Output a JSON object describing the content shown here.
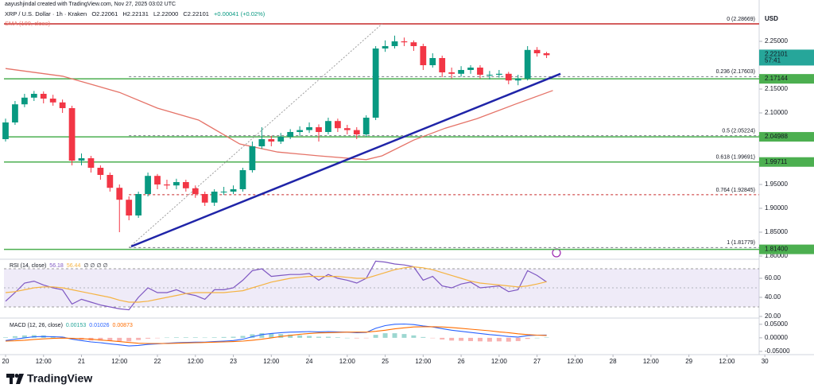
{
  "header": {
    "credit": "aayushjindal created with TradingView.com, Nov 27, 2025 03:02 UTC",
    "symbol": "XRP / U.S. Dollar · 1h · Kraken",
    "ohlc": [
      "O2.22061",
      "H2.22131",
      "L2.22000",
      "C2.22101",
      "+0.00041 (+0.02%)"
    ]
  },
  "chart_data": [
    {
      "type": "candlestick",
      "currency": "USD",
      "xlim": [
        -0.5,
        238.2
      ],
      "ylim": [
        1.795,
        2.31
      ],
      "grid": false,
      "yticks": [
        {
          "value": 2.25,
          "label": "2.25000"
        },
        {
          "value": 2.15,
          "label": "2.15000"
        },
        {
          "value": 2.1,
          "label": "2.10000"
        },
        {
          "value": 1.95,
          "label": "1.95000"
        },
        {
          "value": 1.9,
          "label": "1.90000"
        },
        {
          "value": 1.85,
          "label": "1.85000"
        },
        {
          "value": 1.8,
          "label": "1.80000"
        }
      ],
      "x": [
        0,
        3,
        6,
        9,
        12,
        15,
        18,
        21,
        24,
        27,
        30,
        33,
        36,
        39,
        42,
        45,
        48,
        51,
        54,
        57,
        60,
        63,
        66,
        69,
        72,
        75,
        78,
        81,
        84,
        87,
        90,
        93,
        96,
        99,
        102,
        105,
        108,
        111,
        114,
        117,
        120,
        123,
        126,
        129,
        132,
        135,
        138,
        141,
        144,
        147,
        150,
        153,
        156,
        159,
        162,
        165,
        168,
        171
      ],
      "open": [
        2.045,
        2.08,
        2.118,
        2.132,
        2.14,
        2.13,
        2.122,
        2.11,
        2.0,
        2.005,
        1.985,
        1.97,
        1.943,
        1.918,
        1.885,
        1.93,
        1.968,
        1.95,
        1.948,
        1.955,
        1.942,
        1.93,
        1.912,
        1.935,
        1.935,
        1.94,
        1.98,
        2.03,
        2.045,
        2.04,
        2.05,
        2.06,
        2.064,
        2.07,
        2.06,
        2.083,
        2.068,
        2.064,
        2.055,
        2.09,
        2.235,
        2.24,
        2.25,
        2.248,
        2.24,
        2.2,
        2.215,
        2.185,
        2.182,
        2.19,
        2.195,
        2.18,
        2.18,
        2.182,
        2.168,
        2.172,
        2.232,
        2.225
      ],
      "high": [
        2.088,
        2.125,
        2.14,
        2.146,
        2.145,
        2.138,
        2.128,
        2.115,
        2.015,
        2.01,
        1.99,
        1.975,
        1.95,
        1.925,
        1.935,
        1.975,
        1.972,
        1.96,
        1.962,
        1.96,
        1.948,
        1.935,
        1.94,
        1.945,
        1.948,
        1.985,
        2.04,
        2.07,
        2.052,
        2.058,
        2.066,
        2.072,
        2.08,
        2.076,
        2.09,
        2.088,
        2.075,
        2.07,
        2.095,
        2.24,
        2.252,
        2.262,
        2.258,
        2.252,
        2.245,
        2.225,
        2.22,
        2.195,
        2.198,
        2.2,
        2.2,
        2.188,
        2.19,
        2.186,
        2.18,
        2.24,
        2.238,
        2.228
      ],
      "low": [
        2.04,
        2.075,
        2.112,
        2.125,
        2.12,
        2.115,
        2.1,
        1.99,
        1.99,
        1.975,
        1.96,
        1.935,
        1.85,
        1.875,
        1.88,
        1.925,
        1.94,
        1.94,
        1.94,
        1.935,
        1.922,
        1.905,
        1.905,
        1.928,
        1.93,
        1.935,
        1.975,
        2.025,
        2.03,
        2.035,
        2.045,
        2.052,
        2.058,
        2.04,
        2.055,
        2.06,
        2.055,
        2.045,
        2.05,
        2.085,
        2.228,
        2.235,
        2.24,
        2.23,
        2.19,
        2.195,
        2.175,
        2.172,
        2.176,
        2.182,
        2.172,
        2.17,
        2.174,
        2.16,
        2.158,
        2.168,
        2.218,
        2.215
      ],
      "close": [
        2.08,
        2.118,
        2.132,
        2.14,
        2.13,
        2.122,
        2.11,
        2.0,
        2.005,
        1.985,
        1.97,
        1.943,
        1.918,
        1.885,
        1.93,
        1.968,
        1.95,
        1.948,
        1.955,
        1.942,
        1.93,
        1.912,
        1.935,
        1.935,
        1.94,
        1.98,
        2.03,
        2.045,
        2.04,
        2.05,
        2.06,
        2.064,
        2.07,
        2.06,
        2.083,
        2.068,
        2.064,
        2.055,
        2.09,
        2.235,
        2.24,
        2.25,
        2.248,
        2.24,
        2.2,
        2.215,
        2.185,
        2.182,
        2.19,
        2.195,
        2.18,
        2.18,
        2.182,
        2.168,
        2.172,
        2.232,
        2.225,
        2.22101
      ],
      "up_color": "#089981",
      "down_color": "#f23645",
      "sma": {
        "name": "SMA (100, close)",
        "color": "#e57368",
        "x": [
          0,
          18,
          36,
          48,
          61,
          74,
          86,
          99,
          114,
          119,
          129,
          139,
          149,
          161,
          173
        ],
        "values": [
          2.193,
          2.177,
          2.143,
          2.11,
          2.085,
          2.035,
          2.018,
          2.01,
          2.002,
          2.01,
          2.043,
          2.068,
          2.088,
          2.118,
          2.147
        ]
      },
      "trendline": {
        "color": "#1f24a8",
        "x": [
          39.7,
          175.4
        ],
        "values": [
          1.82,
          2.182
        ]
      },
      "fib_line": {
        "color": "#9e9e9e",
        "x": [
          39,
          119
        ],
        "values": [
          1.81779,
          2.28669
        ]
      },
      "fib": [
        {
          "value": 2.28669,
          "label": "0 (2.28669)",
          "color": "#c62828",
          "style": "solid"
        },
        {
          "value": 2.17603,
          "label": "0.236 (2.17603)",
          "color": "#787b86",
          "style": "dashed"
        },
        {
          "value": 2.05224,
          "label": "0.5 (2.05224)",
          "color": "#787b86",
          "style": "dashed"
        },
        {
          "value": 1.99691,
          "label": "0.618 (1.99691)",
          "color": "#787b86",
          "style": "dashed"
        },
        {
          "value": 1.92845,
          "label": "0.764 (1.92845)",
          "color": "#c62828",
          "style": "dashed"
        },
        {
          "value": 1.81779,
          "label": "1 (1.81779)",
          "color": "#787b86",
          "style": "dashed"
        }
      ],
      "levels": {
        "color": "#4caf50",
        "values": [
          2.17144,
          2.04988,
          1.99711,
          {
            "value": 1.814,
            "label": "1.81400"
          }
        ]
      },
      "last": {
        "value": 2.22101,
        "countdown": "57:41",
        "color": "#26a69a"
      }
    },
    {
      "type": "line",
      "title": "RSI (14, close)",
      "placeholders": "∅ ∅ ∅ ∅",
      "xlim": [
        -0.5,
        238.2
      ],
      "ylim": [
        18.3,
        80
      ],
      "yticks": [
        {
          "value": 60,
          "label": "60.00"
        },
        {
          "value": 40,
          "label": "40.00"
        },
        {
          "value": 20,
          "label": "20.00"
        }
      ],
      "band": [
        30,
        70
      ],
      "band_color": "#7e57c2",
      "midline": 50,
      "series": [
        {
          "color": "#7e57c2",
          "values": [
            36,
            45,
            55,
            57,
            53,
            50,
            48,
            33,
            38,
            35,
            32,
            30,
            28,
            27,
            40,
            50,
            45,
            45,
            48,
            44,
            42,
            38,
            48,
            48,
            50,
            58,
            68,
            70,
            62,
            63,
            64,
            64,
            65,
            58,
            64,
            60,
            58,
            55,
            60,
            78,
            77,
            75,
            74,
            72,
            58,
            62,
            52,
            50,
            54,
            56,
            50,
            51,
            52,
            46,
            48,
            68,
            63,
            56.18
          ]
        },
        {
          "color": "#f5b342",
          "values": [
            45,
            46,
            48,
            50,
            51,
            51,
            50,
            48,
            46,
            44,
            42,
            40,
            37,
            35,
            35,
            36,
            38,
            40,
            42,
            44,
            45,
            45,
            45,
            45,
            46,
            47,
            50,
            53,
            56,
            58,
            60,
            61,
            62,
            62,
            62,
            62,
            61,
            60,
            60,
            63,
            66,
            69,
            71,
            72,
            71,
            69,
            66,
            63,
            60,
            57,
            55,
            54,
            53,
            52,
            51,
            52,
            54,
            56.44
          ]
        }
      ]
    },
    {
      "type": "macd",
      "title": "MACD (12, 26, close)",
      "xlim": [
        -0.5,
        238.2
      ],
      "ylim": [
        -0.062,
        0.073
      ],
      "yticks": [
        {
          "value": 0.05,
          "label": "0.05000"
        },
        {
          "value": 0,
          "label": "0.00000"
        },
        {
          "value": -0.05,
          "label": "-0.05000"
        }
      ],
      "histogram": {
        "up_color": "#26a69a",
        "down_color": "#ef5350",
        "values": [
          0.002,
          0.006,
          0.009,
          0.01,
          0.009,
          0.006,
          0.004,
          -0.003,
          -0.007,
          -0.01,
          -0.01,
          -0.011,
          -0.012,
          -0.013,
          -0.008,
          -0.003,
          -0.001,
          0.001,
          0.002,
          0.002,
          0.002,
          0.001,
          0.002,
          0.003,
          0.004,
          0.007,
          0.013,
          0.017,
          0.016,
          0.014,
          0.012,
          0.009,
          0.007,
          0.004,
          0.004,
          0.002,
          0.0,
          -0.002,
          -0.001,
          0.011,
          0.017,
          0.017,
          0.014,
          0.009,
          0.003,
          -0.001,
          -0.006,
          -0.01,
          -0.011,
          -0.012,
          -0.013,
          -0.014,
          -0.013,
          -0.014,
          -0.012,
          -0.004,
          0.0,
          0.00153
        ]
      },
      "series": [
        {
          "color": "#2962ff",
          "values": [
            -0.01,
            -0.005,
            0.0,
            0.004,
            0.005,
            0.004,
            0.003,
            -0.005,
            -0.01,
            -0.015,
            -0.018,
            -0.022,
            -0.026,
            -0.03,
            -0.028,
            -0.024,
            -0.022,
            -0.02,
            -0.018,
            -0.017,
            -0.016,
            -0.016,
            -0.014,
            -0.012,
            -0.01,
            -0.005,
            0.004,
            0.012,
            0.016,
            0.019,
            0.021,
            0.022,
            0.023,
            0.022,
            0.023,
            0.022,
            0.021,
            0.019,
            0.02,
            0.035,
            0.045,
            0.05,
            0.051,
            0.049,
            0.044,
            0.04,
            0.034,
            0.028,
            0.024,
            0.02,
            0.016,
            0.012,
            0.009,
            0.005,
            0.003,
            0.008,
            0.01,
            0.01026
          ]
        },
        {
          "color": "#ff6d00",
          "values": [
            -0.012,
            -0.011,
            -0.009,
            -0.006,
            -0.004,
            -0.002,
            -0.001,
            -0.002,
            -0.003,
            -0.005,
            -0.008,
            -0.011,
            -0.014,
            -0.017,
            -0.02,
            -0.021,
            -0.021,
            -0.021,
            -0.02,
            -0.019,
            -0.018,
            -0.017,
            -0.016,
            -0.015,
            -0.014,
            -0.012,
            -0.009,
            -0.005,
            0.0,
            0.005,
            0.009,
            0.013,
            0.016,
            0.018,
            0.019,
            0.02,
            0.021,
            0.021,
            0.021,
            0.024,
            0.028,
            0.033,
            0.037,
            0.04,
            0.041,
            0.041,
            0.04,
            0.038,
            0.035,
            0.032,
            0.029,
            0.026,
            0.022,
            0.019,
            0.015,
            0.012,
            0.01,
            0.00873
          ]
        }
      ],
      "xticks": [
        {
          "value": 0,
          "label": "20"
        },
        {
          "value": 12,
          "label": "12:00"
        },
        {
          "value": 24,
          "label": "21"
        },
        {
          "value": 36,
          "label": "12:00"
        },
        {
          "value": 48,
          "label": "22"
        },
        {
          "value": 60,
          "label": "12:00"
        },
        {
          "value": 72,
          "label": "23"
        },
        {
          "value": 84,
          "label": "12:00"
        },
        {
          "value": 96,
          "label": "24"
        },
        {
          "value": 108,
          "label": "12:00"
        },
        {
          "value": 120,
          "label": "25"
        },
        {
          "value": 132,
          "label": "12:00"
        },
        {
          "value": 144,
          "label": "26"
        },
        {
          "value": 156,
          "label": "12:00"
        },
        {
          "value": 168,
          "label": "27"
        },
        {
          "value": 180,
          "label": "12:00"
        },
        {
          "value": 192,
          "label": "28"
        },
        {
          "value": 204,
          "label": "12:00"
        },
        {
          "value": 216,
          "label": "29"
        },
        {
          "value": 228,
          "label": "12:00"
        },
        {
          "value": 240,
          "label": "30"
        }
      ]
    }
  ],
  "footer": {
    "logo": "TradingView"
  }
}
